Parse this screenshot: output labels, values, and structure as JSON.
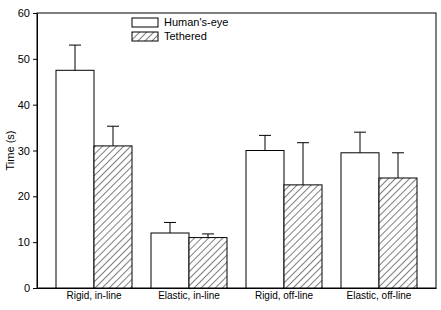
{
  "chart_data": {
    "type": "bar",
    "y_label": "Time (s)",
    "categories": [
      "Rigid, in-line",
      "Elastic, in-line",
      "Rigid, off-line",
      "Elastic, off-line"
    ],
    "series": [
      {
        "name": "Human's-eye",
        "color": "#ffffff",
        "values": [
          47.5,
          12,
          30,
          29.5
        ],
        "errors": [
          5.5,
          2.3,
          3.3,
          4.5
        ]
      },
      {
        "name": "Tethered",
        "color": "#000000",
        "values": [
          31,
          11,
          22.5,
          24
        ],
        "errors": [
          4.3,
          0.8,
          9.2,
          5.5
        ]
      }
    ],
    "ylim": [
      0,
      60
    ],
    "yticks": [
      0,
      10,
      20,
      30,
      40,
      50,
      60
    ],
    "legend": "upper left"
  }
}
